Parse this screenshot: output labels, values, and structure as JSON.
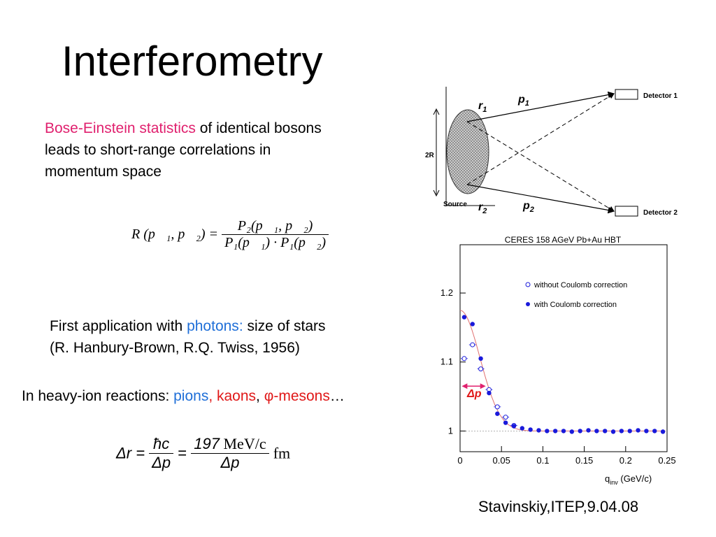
{
  "slide": {
    "title": "Interferometry",
    "footer": "Stavinskiy,ITEP,9.04.08"
  },
  "intro": {
    "highlight": "Bose-Einstein statistics",
    "line1_rest": " of identical bosons",
    "line2": "leads to short-range correlations in",
    "line3": "momentum space"
  },
  "formula_R": {
    "lhs": "R (p⃗₁, p⃗₂) =",
    "numerator": "P₂(p⃗₁, p⃗₂)",
    "denominator": "P₁(p⃗₁) · P₁(p⃗₂)"
  },
  "history": {
    "line1_a": "First application with ",
    "line1_photons": "photons",
    "line1_colon": ":",
    "line1_rest": " size of stars",
    "line2": "(R. Hanbury-Brown, R.Q. Twiss, 1956)"
  },
  "heavy_ion": {
    "prefix": "In heavy-ion reactions: ",
    "pions": "pions",
    "comma1": ", ",
    "kaons": "kaons",
    "comma2": ", ",
    "phi": "φ-mesons",
    "ellipsis": "…"
  },
  "formula_dr": {
    "lhs": "Δr =",
    "frac1_num": "ħc",
    "frac1_den": "Δp",
    "eq": "=",
    "frac2_num_a": "197",
    "frac2_num_b": " MeV/c",
    "frac2_den": "Δp",
    "unit": "fm"
  },
  "diagram": {
    "radius_label": "2R",
    "source_label": "Source",
    "r1": "r",
    "r1_sub": "1",
    "r2": "r",
    "r2_sub": "2",
    "p1": "p",
    "p1_sub": "1",
    "p2": "p",
    "p2_sub": "2",
    "detector1": "Detector 1",
    "detector2": "Detector 2"
  },
  "chart_data": {
    "type": "scatter",
    "title": "CERES 158 AGeV Pb+Au HBT",
    "xlabel": "q",
    "xlabel_sub": "inv",
    "xlabel_unit": " (GeV/c)",
    "xlim": [
      0,
      0.25
    ],
    "ylim": [
      0.97,
      1.27
    ],
    "x_ticks": [
      "0",
      "0.05",
      "0.1",
      "0.15",
      "0.2",
      "0.25"
    ],
    "y_ticks": [
      "1",
      "1.1",
      "1.2"
    ],
    "y_tick_values": [
      1.0,
      1.1,
      1.2
    ],
    "annotation": "Δp",
    "colors": {
      "points": "#1a1adb",
      "fit": "#e07070",
      "arrow": "#e0206e"
    },
    "series": [
      {
        "name": "without Coulomb correction",
        "marker": "open",
        "x": [
          0.005,
          0.015,
          0.025,
          0.035,
          0.045,
          0.055,
          0.065
        ],
        "y": [
          1.105,
          1.125,
          1.09,
          1.06,
          1.035,
          1.02,
          1.008
        ]
      },
      {
        "name": "with Coulomb correction",
        "marker": "filled",
        "x": [
          0.005,
          0.015,
          0.025,
          0.035,
          0.045,
          0.055,
          0.065,
          0.075,
          0.085,
          0.095,
          0.105,
          0.115,
          0.125,
          0.135,
          0.145,
          0.155,
          0.165,
          0.175,
          0.185,
          0.195,
          0.205,
          0.215,
          0.225,
          0.235,
          0.245
        ],
        "y": [
          1.165,
          1.155,
          1.105,
          1.055,
          1.025,
          1.012,
          1.007,
          1.004,
          1.002,
          1.001,
          1.0,
          1.0,
          1.0,
          0.999,
          1.0,
          1.001,
          1.0,
          1.0,
          0.999,
          1.0,
          1.0,
          1.001,
          1.0,
          1.0,
          0.999
        ]
      }
    ]
  }
}
